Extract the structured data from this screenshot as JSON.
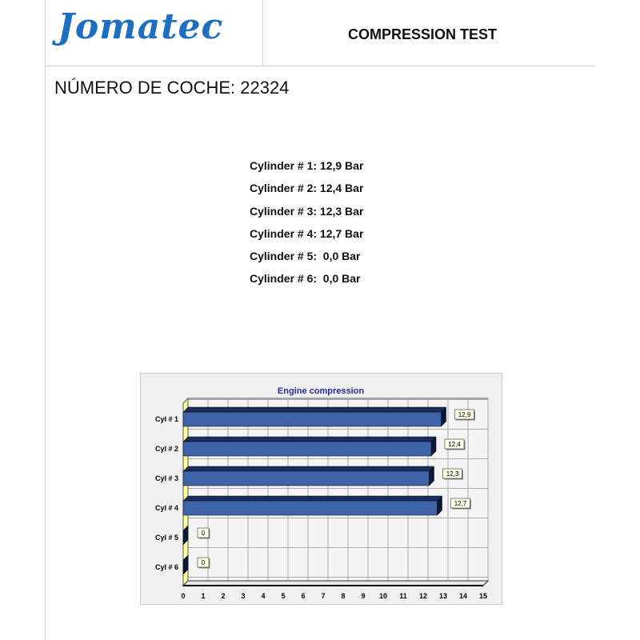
{
  "header": {
    "logo_text": "Jomatec",
    "title": "COMPRESSION TEST"
  },
  "car_number_label": "NÚMERO DE COCHE: 22324",
  "readings": [
    "Cylinder # 1: 12,9 Bar",
    "Cylinder # 2: 12,4 Bar",
    "Cylinder # 3: 12,3 Bar",
    "Cylinder # 4: 12,7 Bar",
    "Cylinder # 5:  0,0 Bar",
    "Cylinder # 6:  0,0 Bar"
  ],
  "chart_data": {
    "type": "bar",
    "orientation": "horizontal",
    "title": "Engine compression",
    "categories": [
      "Cyl # 1",
      "Cyl # 2",
      "Cyl # 3",
      "Cyl # 4",
      "Cyl # 5",
      "Cyl # 6"
    ],
    "values": [
      12.9,
      12.4,
      12.3,
      12.7,
      0,
      0
    ],
    "data_labels": [
      "12,9",
      "12,4",
      "12,3",
      "12,7",
      "0",
      "0"
    ],
    "xlim": [
      0,
      15
    ],
    "xticks": [
      0,
      1,
      2,
      3,
      4,
      5,
      6,
      7,
      8,
      9,
      10,
      11,
      12,
      13,
      14,
      15
    ],
    "grid": true,
    "colors": {
      "bar": "#3f63a8",
      "bar_top": "#1a2d5e",
      "wall": "#ffff99",
      "title": "#2a2aa0"
    }
  }
}
